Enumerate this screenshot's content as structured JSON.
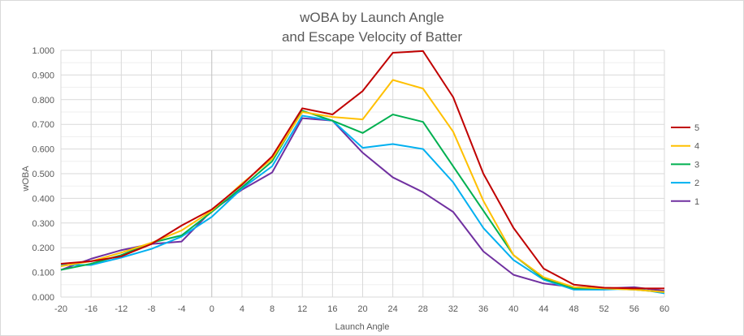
{
  "chart_data": {
    "type": "line",
    "title": [
      "wOBA by Launch Angle",
      "and Escape Velocity of Batter"
    ],
    "xlabel": "Launch Angle",
    "ylabel": "wOBA",
    "x": [
      -20,
      -16,
      -12,
      -8,
      -4,
      0,
      4,
      8,
      12,
      16,
      20,
      24,
      28,
      32,
      36,
      40,
      44,
      48,
      52,
      56,
      60
    ],
    "ylim": [
      0,
      1
    ],
    "yticks": [
      "0.000",
      "0.100",
      "0.200",
      "0.300",
      "0.400",
      "0.500",
      "0.600",
      "0.700",
      "0.800",
      "0.900",
      "1.000"
    ],
    "grid": true,
    "legend": "right",
    "series": [
      {
        "name": "5",
        "color": "#c00000",
        "values": [
          0.135,
          0.145,
          0.165,
          0.215,
          0.29,
          0.355,
          0.455,
          0.57,
          0.765,
          0.74,
          0.835,
          0.99,
          0.997,
          0.81,
          0.5,
          0.28,
          0.115,
          0.05,
          0.038,
          0.035,
          0.035
        ]
      },
      {
        "name": "4",
        "color": "#ffc000",
        "values": [
          0.125,
          0.145,
          0.18,
          0.22,
          0.27,
          0.35,
          0.46,
          0.56,
          0.75,
          0.73,
          0.72,
          0.88,
          0.845,
          0.67,
          0.39,
          0.17,
          0.08,
          0.04,
          0.035,
          0.03,
          0.02
        ]
      },
      {
        "name": "3",
        "color": "#00b050",
        "values": [
          0.11,
          0.135,
          0.17,
          0.22,
          0.25,
          0.345,
          0.445,
          0.55,
          0.755,
          0.715,
          0.665,
          0.74,
          0.71,
          0.53,
          0.35,
          0.17,
          0.075,
          0.035,
          0.035,
          0.03,
          0.02
        ]
      },
      {
        "name": "2",
        "color": "#00b0f0",
        "values": [
          0.13,
          0.13,
          0.16,
          0.195,
          0.245,
          0.325,
          0.44,
          0.53,
          0.735,
          0.715,
          0.605,
          0.62,
          0.6,
          0.465,
          0.28,
          0.15,
          0.07,
          0.03,
          0.03,
          0.035,
          0.015
        ]
      },
      {
        "name": "1",
        "color": "#7030a0",
        "values": [
          0.11,
          0.155,
          0.19,
          0.215,
          0.225,
          0.35,
          0.435,
          0.505,
          0.725,
          0.715,
          0.585,
          0.485,
          0.425,
          0.345,
          0.185,
          0.09,
          0.055,
          0.04,
          0.035,
          0.04,
          0.025
        ]
      }
    ]
  }
}
